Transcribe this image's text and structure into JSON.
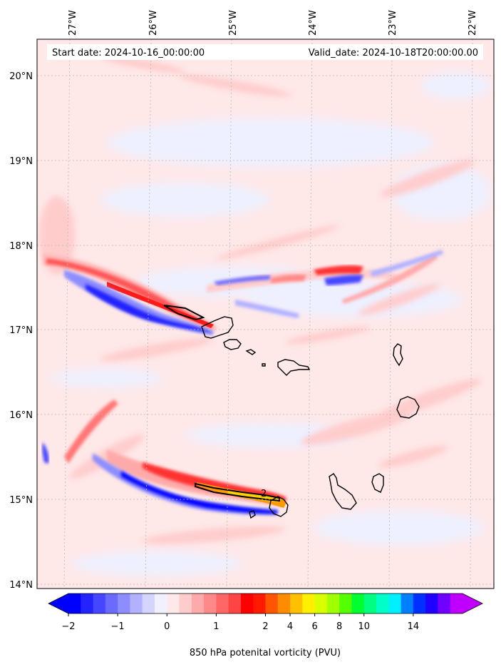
{
  "header": {
    "start_date": "Start date: 2024-10-16_00:00:00",
    "valid_date": "Valid_date: 2024-10-18T20:00:00.00"
  },
  "map": {
    "lon_ticks": [
      "27°W",
      "26°W",
      "25°W",
      "24°W",
      "23°W",
      "22°W"
    ],
    "lat_ticks": [
      "20°N",
      "19°N",
      "18°N",
      "17°N",
      "16°N",
      "15°N",
      "14°N"
    ],
    "contour_label": "2",
    "gridlines": "dashed"
  },
  "colorbar": {
    "ticks": [
      "−2",
      "−1",
      "0",
      "1",
      "2",
      "4",
      "6",
      "8",
      "10",
      "14"
    ],
    "label": "850 hPa potenital vorticity (PVU)",
    "colors": [
      "#0000ff",
      "#2323ff",
      "#4646ff",
      "#6a6aff",
      "#8d8dff",
      "#b1b1ff",
      "#d4d4ff",
      "#f0f0ff",
      "#ffe8e8",
      "#ffcccc",
      "#ffaaaa",
      "#ff8888",
      "#ff6666",
      "#ff4444",
      "#ff0000",
      "#ff1a00",
      "#ff5500",
      "#ff8c00",
      "#ffc000",
      "#fff000",
      "#d8ff00",
      "#a0ff00",
      "#55ff00",
      "#00ff30",
      "#00ff80",
      "#00ffc8",
      "#00f0ff",
      "#0080ff",
      "#0030ff",
      "#2000ff",
      "#7000ff",
      "#c000ff"
    ]
  }
}
